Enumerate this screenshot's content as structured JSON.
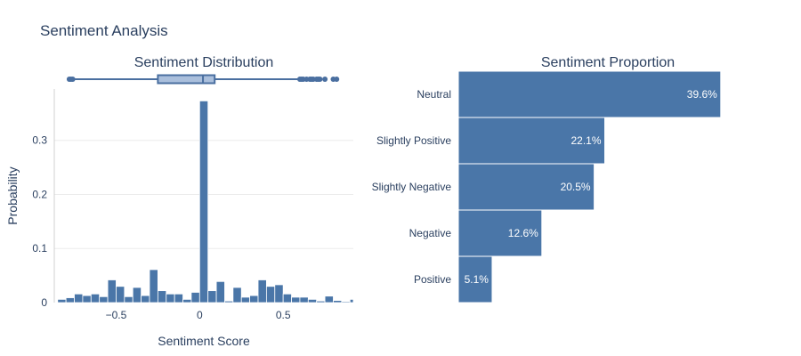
{
  "title": "Sentiment Analysis",
  "colors": {
    "bar": "#4a76a8",
    "bar_edge": "#ffffff",
    "box_fill": "#aabfdc",
    "box_line": "#4a6fa0",
    "text": "#2a3f5f"
  },
  "chart_data": [
    {
      "type": "histogram",
      "title": "Sentiment Distribution",
      "xlabel": "Sentiment Score",
      "ylabel": "Probability",
      "xlim": [
        -0.87,
        0.92
      ],
      "ylim": [
        0,
        0.395
      ],
      "x_ticks": [
        -0.5,
        0,
        0.5
      ],
      "x_tick_labels": [
        "−0.5",
        "0",
        "0.5"
      ],
      "y_ticks": [
        0,
        0.1,
        0.2,
        0.3
      ],
      "y_tick_labels": [
        "0",
        "0.1",
        "0.2",
        "0.3"
      ],
      "bin_start": -0.85,
      "bin_width": 0.05,
      "values": [
        0.006,
        0.009,
        0.016,
        0.013,
        0.016,
        0.011,
        0.042,
        0.03,
        0.011,
        0.028,
        0.013,
        0.061,
        0.022,
        0.016,
        0.016,
        0.006,
        0.019,
        0.373,
        0.022,
        0.039,
        0.003,
        0.028,
        0.01,
        0.013,
        0.042,
        0.03,
        0.033,
        0.016,
        0.01,
        0.01,
        0.006,
        0.003,
        0.012,
        0.004,
        0.002,
        0.006
      ],
      "box": {
        "whisker_low": -0.77,
        "q1": -0.25,
        "median": 0.02,
        "q3": 0.09,
        "whisker_high": 0.6,
        "outliers": [
          -0.78,
          -0.77,
          -0.76,
          0.6,
          0.61,
          0.62,
          0.64,
          0.66,
          0.67,
          0.68,
          0.7,
          0.71,
          0.72,
          0.75,
          0.8,
          0.82
        ]
      }
    },
    {
      "type": "bar",
      "orientation": "horizontal",
      "title": "Sentiment Proportion",
      "categories": [
        "Neutral",
        "Slightly Positive",
        "Slightly Negative",
        "Negative",
        "Positive"
      ],
      "values": [
        39.6,
        22.1,
        20.5,
        12.6,
        5.1
      ],
      "value_labels": [
        "39.6%",
        "22.1%",
        "20.5%",
        "12.6%",
        "5.1%"
      ],
      "xlim": [
        0,
        45
      ]
    }
  ]
}
